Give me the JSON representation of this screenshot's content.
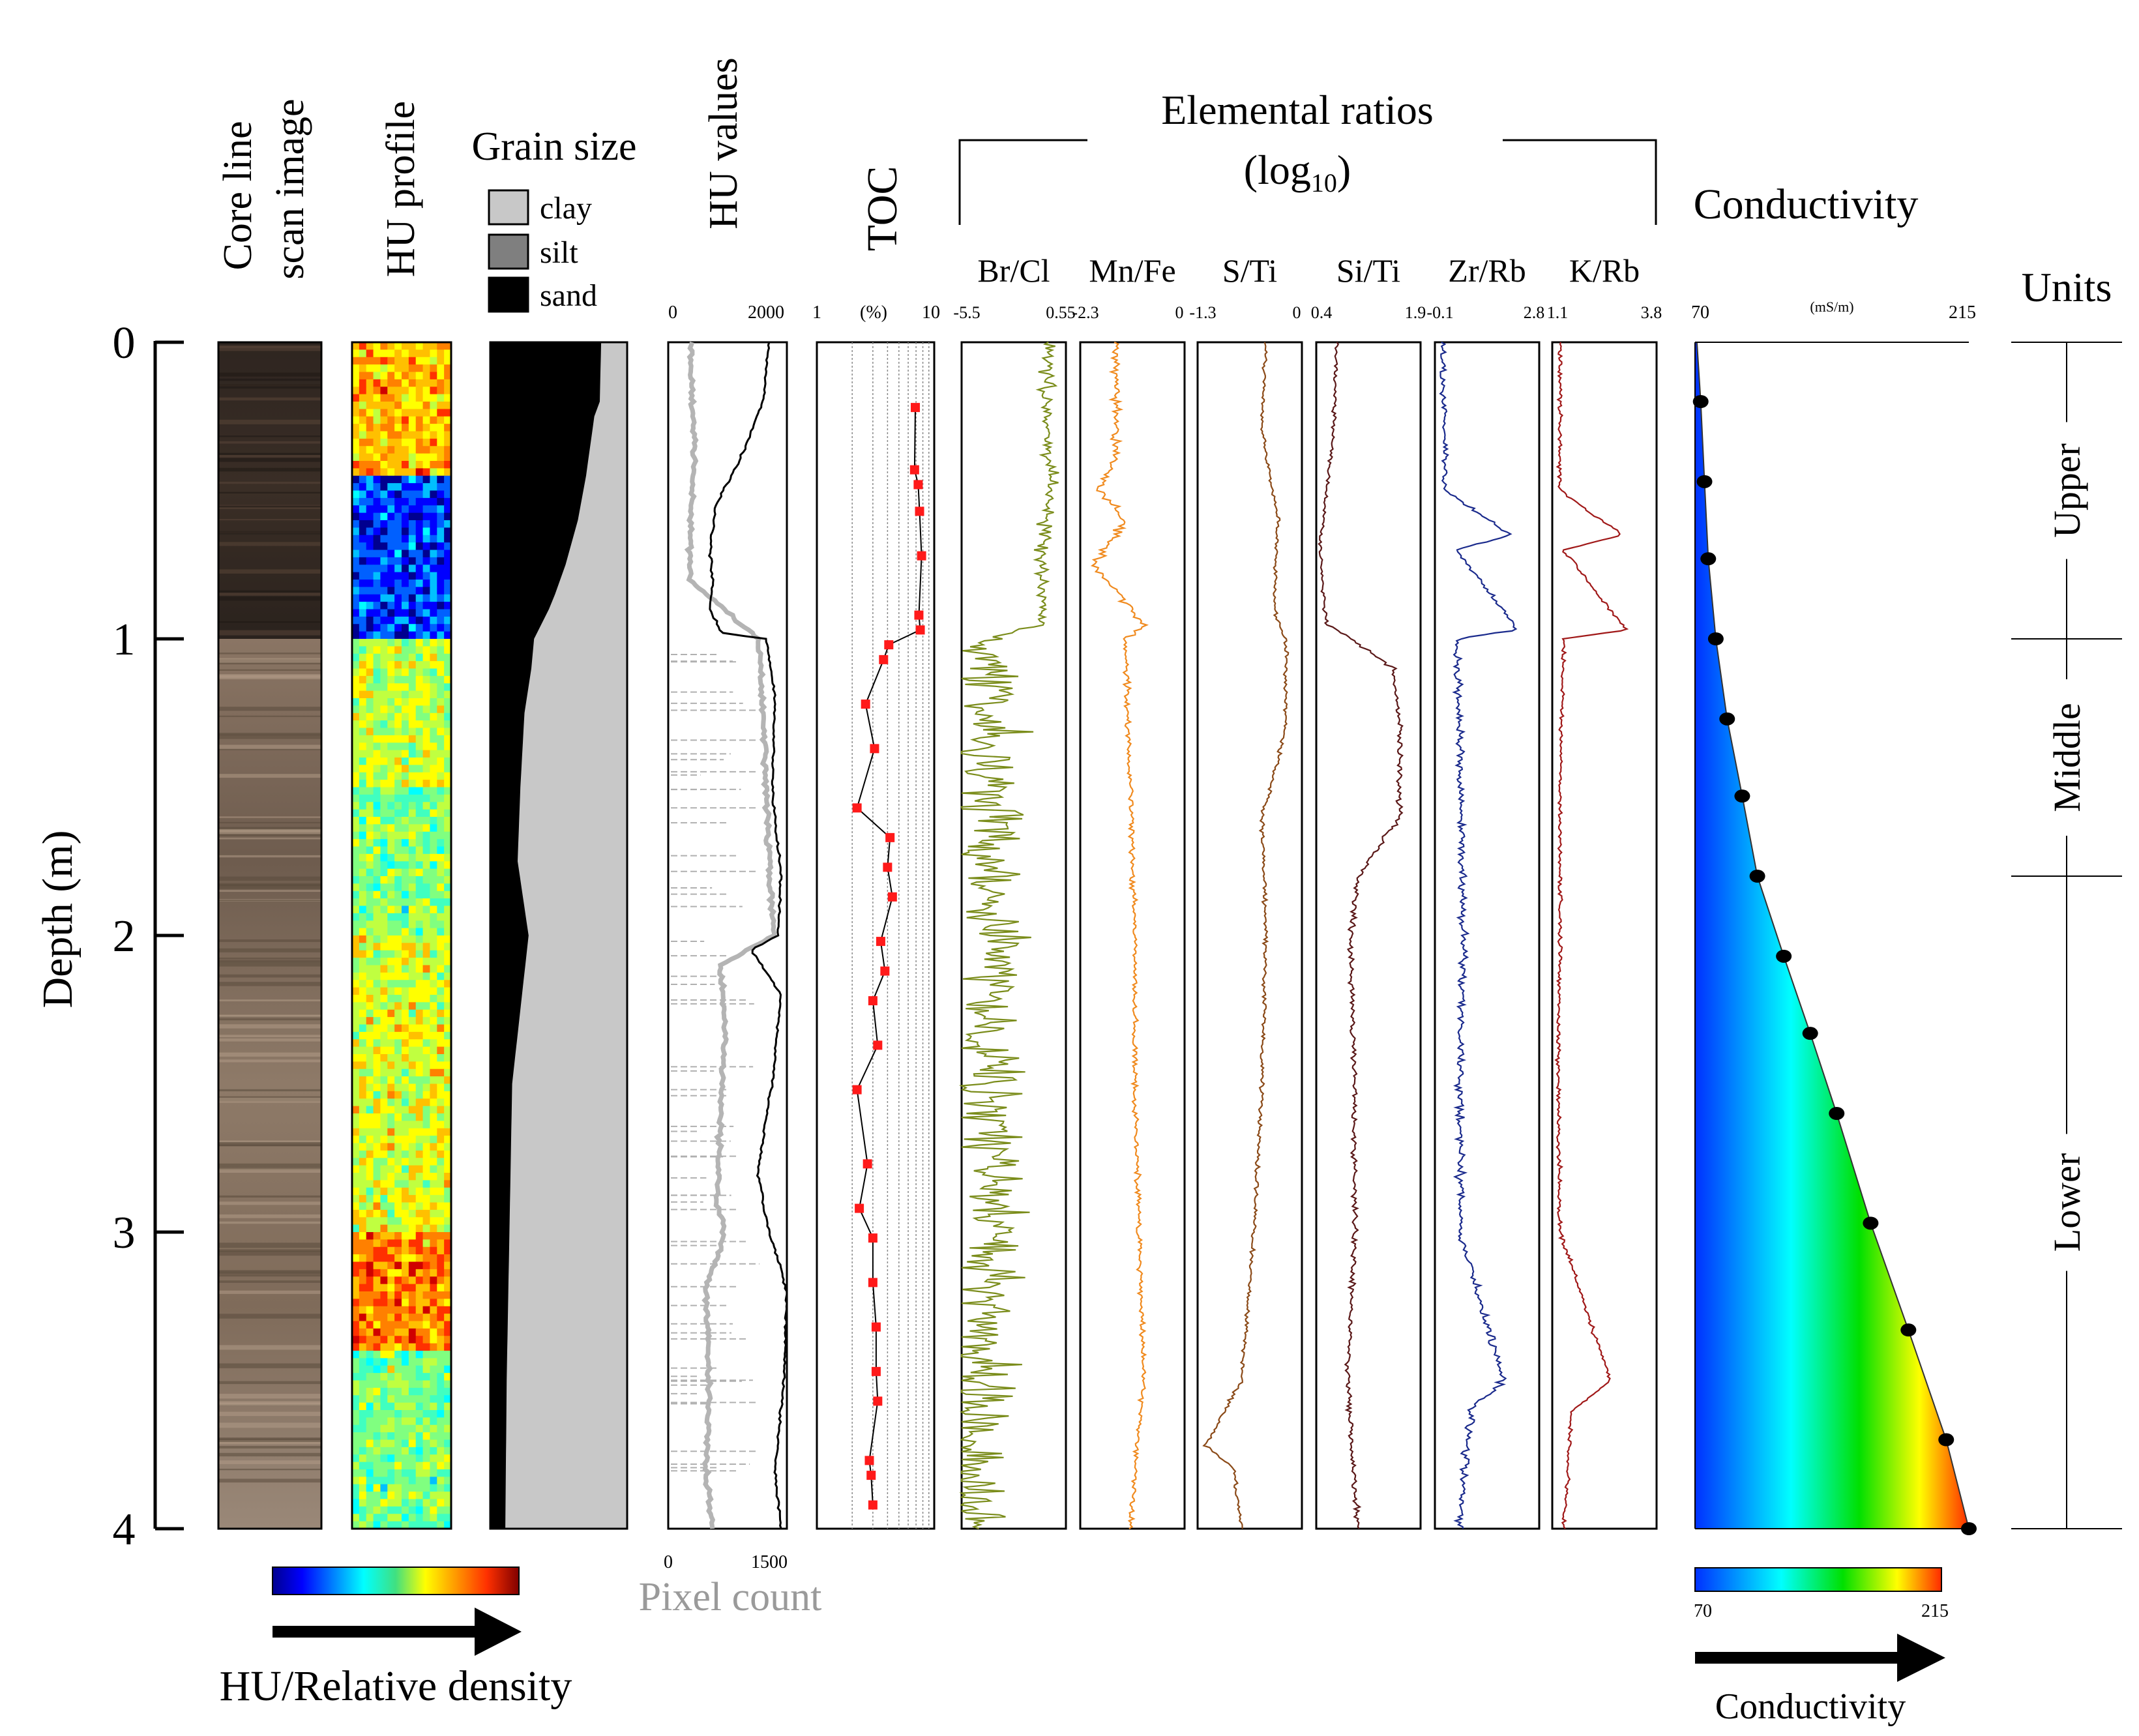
{
  "chart_data": {
    "type": "multi-panel core log",
    "depth_axis": {
      "label": "Depth (m)",
      "ticks": [
        "0",
        "1",
        "2",
        "3",
        "4"
      ],
      "range": [
        0,
        4
      ]
    },
    "panels": {
      "core_image": {
        "title_line1": "Core line",
        "title_line2": "scan image"
      },
      "hu_profile": {
        "title": "HU profile"
      },
      "grain_size": {
        "title": "Grain size",
        "legend": [
          "clay",
          "silt",
          "sand"
        ],
        "colors": {
          "clay": "#c8c8c8",
          "silt": "#7f7f7f",
          "sand": "#000000"
        },
        "clay_boundary": [
          [
            0,
            81
          ],
          [
            0.2,
            80
          ],
          [
            0.25,
            76
          ],
          [
            0.45,
            70
          ],
          [
            0.6,
            64
          ],
          [
            0.75,
            55
          ],
          [
            0.88,
            45
          ],
          [
            1.0,
            32
          ],
          [
            1.1,
            30
          ],
          [
            1.25,
            25
          ],
          [
            1.5,
            22
          ],
          [
            1.75,
            20
          ],
          [
            2.0,
            28
          ],
          [
            2.25,
            22
          ],
          [
            2.5,
            16
          ],
          [
            3.0,
            14
          ],
          [
            3.5,
            12
          ],
          [
            4.0,
            11
          ]
        ],
        "silt_boundary": [
          [
            0,
            100
          ],
          [
            0.2,
            98
          ],
          [
            0.45,
            92
          ],
          [
            0.7,
            86
          ],
          [
            0.9,
            78
          ],
          [
            1.0,
            58
          ],
          [
            1.2,
            50
          ],
          [
            1.5,
            42
          ],
          [
            1.75,
            38
          ],
          [
            2.0,
            55
          ],
          [
            2.3,
            40
          ],
          [
            2.6,
            30
          ],
          [
            3.0,
            22
          ],
          [
            3.5,
            18
          ],
          [
            4.0,
            16
          ]
        ]
      },
      "hu_values": {
        "title": "HU values",
        "top_ticks": [
          "0",
          "2000"
        ],
        "bottom_ticks": [
          "0",
          "1500"
        ],
        "bottom_label": "Pixel count",
        "hu_series": [
          [
            0,
            1700
          ],
          [
            0.2,
            1600
          ],
          [
            0.4,
            1200
          ],
          [
            0.55,
            800
          ],
          [
            0.7,
            700
          ],
          [
            0.8,
            750
          ],
          [
            0.9,
            700
          ],
          [
            0.98,
            900
          ],
          [
            1.0,
            1650
          ],
          [
            1.2,
            1800
          ],
          [
            1.5,
            1750
          ],
          [
            1.8,
            1900
          ],
          [
            2.0,
            1850
          ],
          [
            2.05,
            1400
          ],
          [
            2.2,
            1900
          ],
          [
            2.5,
            1750
          ],
          [
            2.8,
            1500
          ],
          [
            3.0,
            1700
          ],
          [
            3.2,
            2000
          ],
          [
            3.5,
            1950
          ],
          [
            3.8,
            1800
          ],
          [
            4.0,
            1900
          ]
        ],
        "pixel_series": [
          [
            0,
            300
          ],
          [
            0.2,
            320
          ],
          [
            0.4,
            350
          ],
          [
            0.6,
            300
          ],
          [
            0.8,
            280
          ],
          [
            1.0,
            1200
          ],
          [
            1.2,
            1250
          ],
          [
            1.5,
            1300
          ],
          [
            1.8,
            1350
          ],
          [
            2.0,
            1400
          ],
          [
            2.1,
            700
          ],
          [
            2.3,
            750
          ],
          [
            2.6,
            700
          ],
          [
            2.9,
            650
          ],
          [
            3.0,
            750
          ],
          [
            3.2,
            500
          ],
          [
            3.5,
            550
          ],
          [
            3.8,
            500
          ],
          [
            4.0,
            600
          ]
        ]
      },
      "toc": {
        "title": "TOC",
        "unit": "(%)",
        "ticks": [
          "1",
          "10"
        ],
        "range": [
          1,
          10
        ],
        "points": [
          [
            0.22,
            6.9
          ],
          [
            0.43,
            6.8
          ],
          [
            0.48,
            7.3
          ],
          [
            0.57,
            7.5
          ],
          [
            0.72,
            7.8
          ],
          [
            0.92,
            7.4
          ],
          [
            0.97,
            7.6
          ],
          [
            1.02,
            4.1
          ],
          [
            1.07,
            3.7
          ],
          [
            1.22,
            2.6
          ],
          [
            1.37,
            3.1
          ],
          [
            1.57,
            2.2
          ],
          [
            1.67,
            4.2
          ],
          [
            1.77,
            4.0
          ],
          [
            1.87,
            4.4
          ],
          [
            2.02,
            3.5
          ],
          [
            2.12,
            3.8
          ],
          [
            2.22,
            3.0
          ],
          [
            2.37,
            3.3
          ],
          [
            2.52,
            2.2
          ],
          [
            2.77,
            2.7
          ],
          [
            2.92,
            2.3
          ],
          [
            3.02,
            3.0
          ],
          [
            3.17,
            3.0
          ],
          [
            3.32,
            3.2
          ],
          [
            3.47,
            3.2
          ],
          [
            3.57,
            3.3
          ],
          [
            3.77,
            2.8
          ],
          [
            3.82,
            2.9
          ],
          [
            3.92,
            3.0
          ]
        ]
      },
      "elemental": {
        "title_line1": "Elemental ratios",
        "title_base": "(log",
        "title_sub": "10",
        "title_close": ")",
        "tracks": [
          {
            "name": "Br/Cl",
            "min": "-5.5",
            "max": "0.55",
            "color": "#7a8c1a",
            "range": [
              -5.5,
              0.55
            ],
            "profile": [
              [
                0,
                -0.5
              ],
              [
                0.3,
                -0.6
              ],
              [
                0.5,
                -0.2
              ],
              [
                0.7,
                -0.9
              ],
              [
                0.95,
                -0.8
              ],
              [
                1.0,
                -4.0
              ],
              [
                1.5,
                -3.8
              ],
              [
                2.0,
                -3.5
              ],
              [
                2.5,
                -3.8
              ],
              [
                3.0,
                -3.6
              ],
              [
                3.5,
                -4.3
              ],
              [
                4.0,
                -5.0
              ]
            ],
            "noise_upper": 0.2,
            "noise_lower": 0.9
          },
          {
            "name": "Mn/Fe",
            "min": "-2.3",
            "max": "0",
            "color": "#f08a1e",
            "range": [
              -2.3,
              0
            ],
            "profile": [
              [
                0,
                -1.5
              ],
              [
                0.4,
                -1.55
              ],
              [
                0.5,
                -1.9
              ],
              [
                0.6,
                -1.3
              ],
              [
                0.75,
                -2.0
              ],
              [
                0.95,
                -0.9
              ],
              [
                1.0,
                -1.3
              ],
              [
                1.5,
                -1.2
              ],
              [
                2.0,
                -1.1
              ],
              [
                2.5,
                -1.1
              ],
              [
                3.0,
                -1.0
              ],
              [
                3.5,
                -0.9
              ],
              [
                4.0,
                -1.2
              ]
            ],
            "noise_upper": 0.15,
            "noise_lower": 0.08
          },
          {
            "name": "S/Ti",
            "min": "-1.3",
            "max": "0",
            "color": "#8b4a18",
            "range": [
              -1.3,
              0
            ],
            "profile": [
              [
                0,
                -0.45
              ],
              [
                0.3,
                -0.5
              ],
              [
                0.6,
                -0.3
              ],
              [
                0.9,
                -0.35
              ],
              [
                1.0,
                -0.2
              ],
              [
                1.3,
                -0.2
              ],
              [
                1.6,
                -0.5
              ],
              [
                2.0,
                -0.45
              ],
              [
                2.5,
                -0.5
              ],
              [
                3.0,
                -0.6
              ],
              [
                3.5,
                -0.75
              ],
              [
                3.72,
                -1.2
              ],
              [
                3.8,
                -0.85
              ],
              [
                4.0,
                -0.75
              ]
            ],
            "noise_upper": 0.06,
            "noise_lower": 0.06
          },
          {
            "name": "Si/Ti",
            "min": "0.4",
            "max": "1.9",
            "color": "#5a1818",
            "range": [
              0.4,
              1.9
            ],
            "profile": [
              [
                0,
                0.7
              ],
              [
                0.3,
                0.65
              ],
              [
                0.7,
                0.45
              ],
              [
                0.95,
                0.55
              ],
              [
                1.0,
                0.9
              ],
              [
                1.1,
                1.5
              ],
              [
                1.3,
                1.6
              ],
              [
                1.6,
                1.6
              ],
              [
                1.8,
                1.0
              ],
              [
                2.0,
                0.9
              ],
              [
                2.5,
                0.95
              ],
              [
                3.0,
                0.95
              ],
              [
                3.5,
                0.85
              ],
              [
                4.0,
                1.0
              ]
            ],
            "noise_upper": 0.06,
            "noise_lower": 0.08
          },
          {
            "name": "Zr/Rb",
            "min": "-0.1",
            "max": "2.8",
            "color": "#1a2a8c",
            "range": [
              -0.1,
              2.8
            ],
            "profile": [
              [
                0,
                0.1
              ],
              [
                0.5,
                0.2
              ],
              [
                0.65,
                2.0
              ],
              [
                0.7,
                0.5
              ],
              [
                0.97,
                2.2
              ],
              [
                1.0,
                0.5
              ],
              [
                1.5,
                0.6
              ],
              [
                2.0,
                0.7
              ],
              [
                2.5,
                0.6
              ],
              [
                3.0,
                0.6
              ],
              [
                3.5,
                1.8
              ],
              [
                3.6,
                0.9
              ],
              [
                4.0,
                0.6
              ]
            ],
            "noise_upper": 0.08,
            "noise_lower": 0.12
          },
          {
            "name": "K/Rb",
            "min": "1.1",
            "max": "3.8",
            "color": "#a01818",
            "range": [
              1.1,
              3.8
            ],
            "profile": [
              [
                0,
                1.3
              ],
              [
                0.5,
                1.3
              ],
              [
                0.65,
                2.9
              ],
              [
                0.7,
                1.4
              ],
              [
                0.97,
                3.0
              ],
              [
                1.0,
                1.4
              ],
              [
                1.5,
                1.3
              ],
              [
                2.0,
                1.3
              ],
              [
                2.5,
                1.25
              ],
              [
                3.0,
                1.3
              ],
              [
                3.5,
                2.6
              ],
              [
                3.6,
                1.6
              ],
              [
                4.0,
                1.4
              ]
            ],
            "noise_upper": 0.06,
            "noise_lower": 0.06
          }
        ]
      },
      "conductivity": {
        "title": "Conductivity",
        "unit": "(mS/m)",
        "ticks": [
          "70",
          "215"
        ],
        "range": [
          70,
          215
        ],
        "points": [
          [
            0.2,
            73
          ],
          [
            0.47,
            75
          ],
          [
            0.73,
            77
          ],
          [
            1.0,
            81
          ],
          [
            1.27,
            87
          ],
          [
            1.53,
            95
          ],
          [
            1.8,
            103
          ],
          [
            2.07,
            117
          ],
          [
            2.33,
            131
          ],
          [
            2.6,
            145
          ],
          [
            2.97,
            163
          ],
          [
            3.33,
            183
          ],
          [
            3.7,
            203
          ],
          [
            4.0,
            215
          ]
        ],
        "colorbar": {
          "min": "70",
          "max": "215",
          "label": "Conductivity"
        }
      },
      "units": {
        "title": "Units",
        "items": [
          {
            "name": "Upper",
            "from": 0,
            "to": 1
          },
          {
            "name": "Middle",
            "from": 1,
            "to": 1.8
          },
          {
            "name": "Lower",
            "from": 1.8,
            "to": 4
          }
        ]
      },
      "hu_colorbar": {
        "label": "HU/Relative density"
      }
    }
  }
}
